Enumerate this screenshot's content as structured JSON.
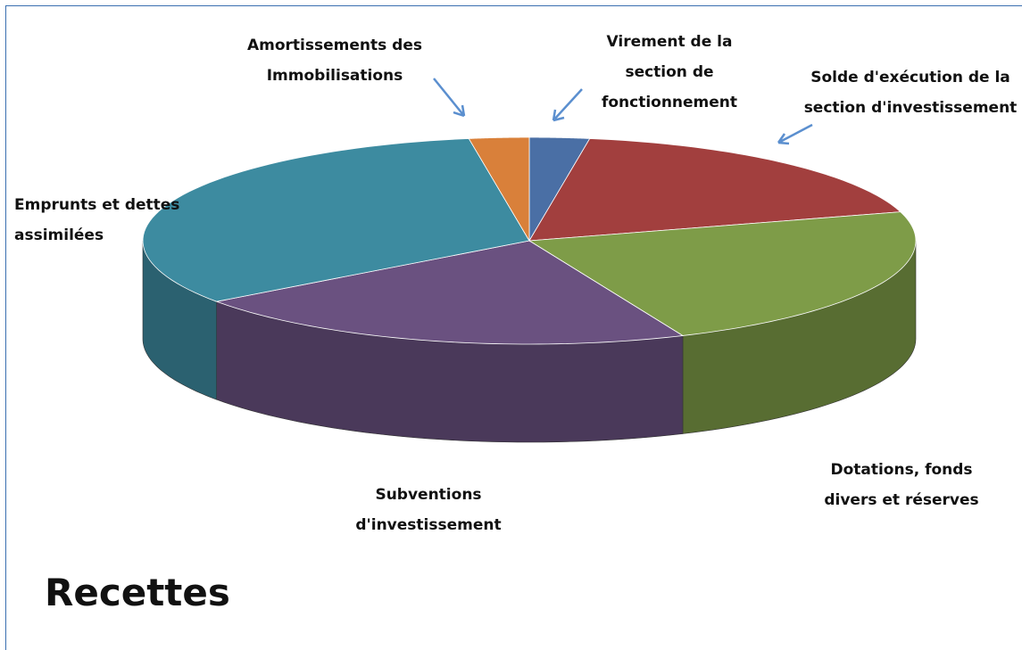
{
  "chart_data": {
    "type": "pie3d",
    "title": "Recettes",
    "categories": [
      "Virement de la section de fonctionnement",
      "Solde d'exécution de la section d'investissement",
      "Dotations, fonds divers et réserves",
      "Subventions d'investissement",
      "Emprunts et dettes assimilées",
      "Amortissements des Immobilisations"
    ],
    "values": [
      2.5,
      18,
      23,
      21.5,
      32.5,
      2.5
    ],
    "colors": [
      "#4a6fa5",
      "#a23f3e",
      "#7e9c48",
      "#6a5180",
      "#3d8ba0",
      "#d9803a"
    ]
  }
}
